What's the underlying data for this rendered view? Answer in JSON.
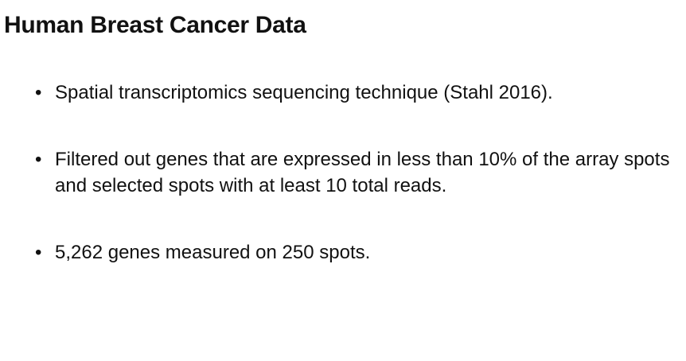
{
  "slide": {
    "title": "Human Breast Cancer Data",
    "bullet_symbol": "•",
    "bullets": [
      "Spatial transcriptomics sequencing technique (Stahl 2016).",
      "Filtered out genes that are expressed in less than 10% of the array spots and selected spots with at least 10 total reads.",
      "5,262 genes measured on 250 spots."
    ]
  }
}
